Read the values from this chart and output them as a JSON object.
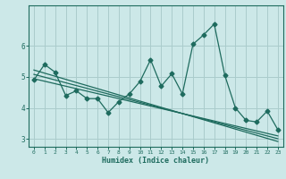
{
  "title": "",
  "xlabel": "Humidex (Indice chaleur)",
  "ylabel": "",
  "bg_color": "#cce8e8",
  "grid_color": "#aacccc",
  "line_color": "#1e6b5e",
  "x_data": [
    0,
    1,
    2,
    3,
    4,
    5,
    6,
    7,
    8,
    9,
    10,
    11,
    12,
    13,
    14,
    15,
    16,
    17,
    18,
    19,
    20,
    21,
    22,
    23
  ],
  "y_data": [
    4.9,
    5.4,
    5.15,
    4.4,
    4.55,
    4.3,
    4.3,
    3.85,
    4.2,
    4.45,
    4.85,
    5.55,
    4.7,
    5.1,
    4.45,
    6.05,
    6.35,
    6.7,
    5.05,
    4.0,
    3.6,
    3.55,
    3.9,
    3.3
  ],
  "trend_upper": [
    5.22,
    5.12,
    5.02,
    4.92,
    4.82,
    4.72,
    4.62,
    4.52,
    4.42,
    4.32,
    4.22,
    4.12,
    4.02,
    3.92,
    3.82,
    3.72,
    3.62,
    3.52,
    3.42,
    3.32,
    3.22,
    3.12,
    3.02,
    2.92
  ],
  "trend_mid": [
    5.08,
    4.99,
    4.9,
    4.81,
    4.72,
    4.63,
    4.54,
    4.45,
    4.36,
    4.27,
    4.18,
    4.09,
    4.0,
    3.91,
    3.82,
    3.73,
    3.64,
    3.55,
    3.46,
    3.37,
    3.28,
    3.19,
    3.1,
    3.01
  ],
  "trend_lower": [
    4.94,
    4.86,
    4.78,
    4.7,
    4.62,
    4.54,
    4.46,
    4.38,
    4.3,
    4.22,
    4.14,
    4.06,
    3.98,
    3.9,
    3.82,
    3.74,
    3.66,
    3.58,
    3.5,
    3.42,
    3.34,
    3.26,
    3.18,
    3.1
  ],
  "xlim": [
    -0.5,
    23.5
  ],
  "ylim": [
    2.75,
    7.3
  ],
  "yticks": [
    3,
    4,
    5,
    6
  ],
  "xticks": [
    0,
    1,
    2,
    3,
    4,
    5,
    6,
    7,
    8,
    9,
    10,
    11,
    12,
    13,
    14,
    15,
    16,
    17,
    18,
    19,
    20,
    21,
    22,
    23
  ],
  "marker_size": 2.5,
  "linewidth": 0.9
}
